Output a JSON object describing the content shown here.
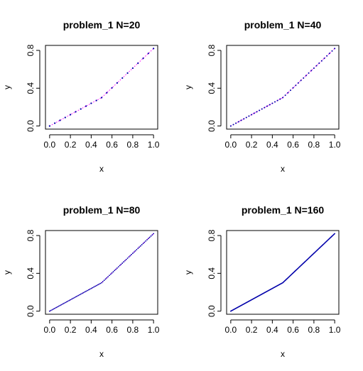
{
  "chart_data": [
    {
      "type": "line",
      "title": "problem_1    N=20",
      "xlabel": "x",
      "ylabel": "y",
      "xlim": [
        0,
        1
      ],
      "ylim": [
        0,
        0.8
      ],
      "xticks": [
        "0.0",
        "0.2",
        "0.4",
        "0.6",
        "0.8",
        "1.0"
      ],
      "yticks": [
        "0.0",
        "0.4",
        "0.8"
      ],
      "N": 20,
      "grid": false,
      "series": [
        {
          "style": "dotted",
          "color": "#ff00ff",
          "x": [
            0,
            0.5,
            1
          ],
          "y": [
            0,
            0.3,
            0.82
          ]
        },
        {
          "style": "points",
          "color": "#0000aa",
          "x": [
            0,
            0.5,
            1
          ],
          "y": [
            0,
            0.3,
            0.82
          ]
        }
      ]
    },
    {
      "type": "line",
      "title": "problem_1    N=40",
      "xlabel": "x",
      "ylabel": "y",
      "xlim": [
        0,
        1
      ],
      "ylim": [
        0,
        0.8
      ],
      "xticks": [
        "0.0",
        "0.2",
        "0.4",
        "0.6",
        "0.8",
        "1.0"
      ],
      "yticks": [
        "0.0",
        "0.4",
        "0.8"
      ],
      "N": 40,
      "grid": false,
      "series": [
        {
          "style": "dotted",
          "color": "#ff00ff",
          "x": [
            0,
            0.5,
            1
          ],
          "y": [
            0,
            0.3,
            0.82
          ]
        },
        {
          "style": "points",
          "color": "#0000aa",
          "x": [
            0,
            0.5,
            1
          ],
          "y": [
            0,
            0.3,
            0.82
          ]
        }
      ]
    },
    {
      "type": "line",
      "title": "problem_1    N=80",
      "xlabel": "x",
      "ylabel": "y",
      "xlim": [
        0,
        1
      ],
      "ylim": [
        0,
        0.8
      ],
      "xticks": [
        "0.0",
        "0.2",
        "0.4",
        "0.6",
        "0.8",
        "1.0"
      ],
      "yticks": [
        "0.0",
        "0.4",
        "0.8"
      ],
      "N": 80,
      "grid": false,
      "series": [
        {
          "style": "dotted",
          "color": "#ff00ff",
          "x": [
            0,
            0.5,
            1
          ],
          "y": [
            0,
            0.3,
            0.82
          ]
        },
        {
          "style": "points",
          "color": "#0000aa",
          "x": [
            0,
            0.5,
            1
          ],
          "y": [
            0,
            0.3,
            0.82
          ]
        }
      ]
    },
    {
      "type": "line",
      "title": "problem_1    N=160",
      "xlabel": "x",
      "ylabel": "y",
      "xlim": [
        0,
        1
      ],
      "ylim": [
        0,
        0.8
      ],
      "xticks": [
        "0.0",
        "0.2",
        "0.4",
        "0.6",
        "0.8",
        "1.0"
      ],
      "yticks": [
        "0.0",
        "0.4",
        "0.8"
      ],
      "N": 160,
      "grid": false,
      "series": [
        {
          "style": "dotted",
          "color": "#ff00ff",
          "x": [
            0,
            0.5,
            1
          ],
          "y": [
            0,
            0.3,
            0.82
          ]
        },
        {
          "style": "points",
          "color": "#0000aa",
          "x": [
            0,
            0.5,
            1
          ],
          "y": [
            0,
            0.3,
            0.82
          ]
        }
      ]
    }
  ]
}
